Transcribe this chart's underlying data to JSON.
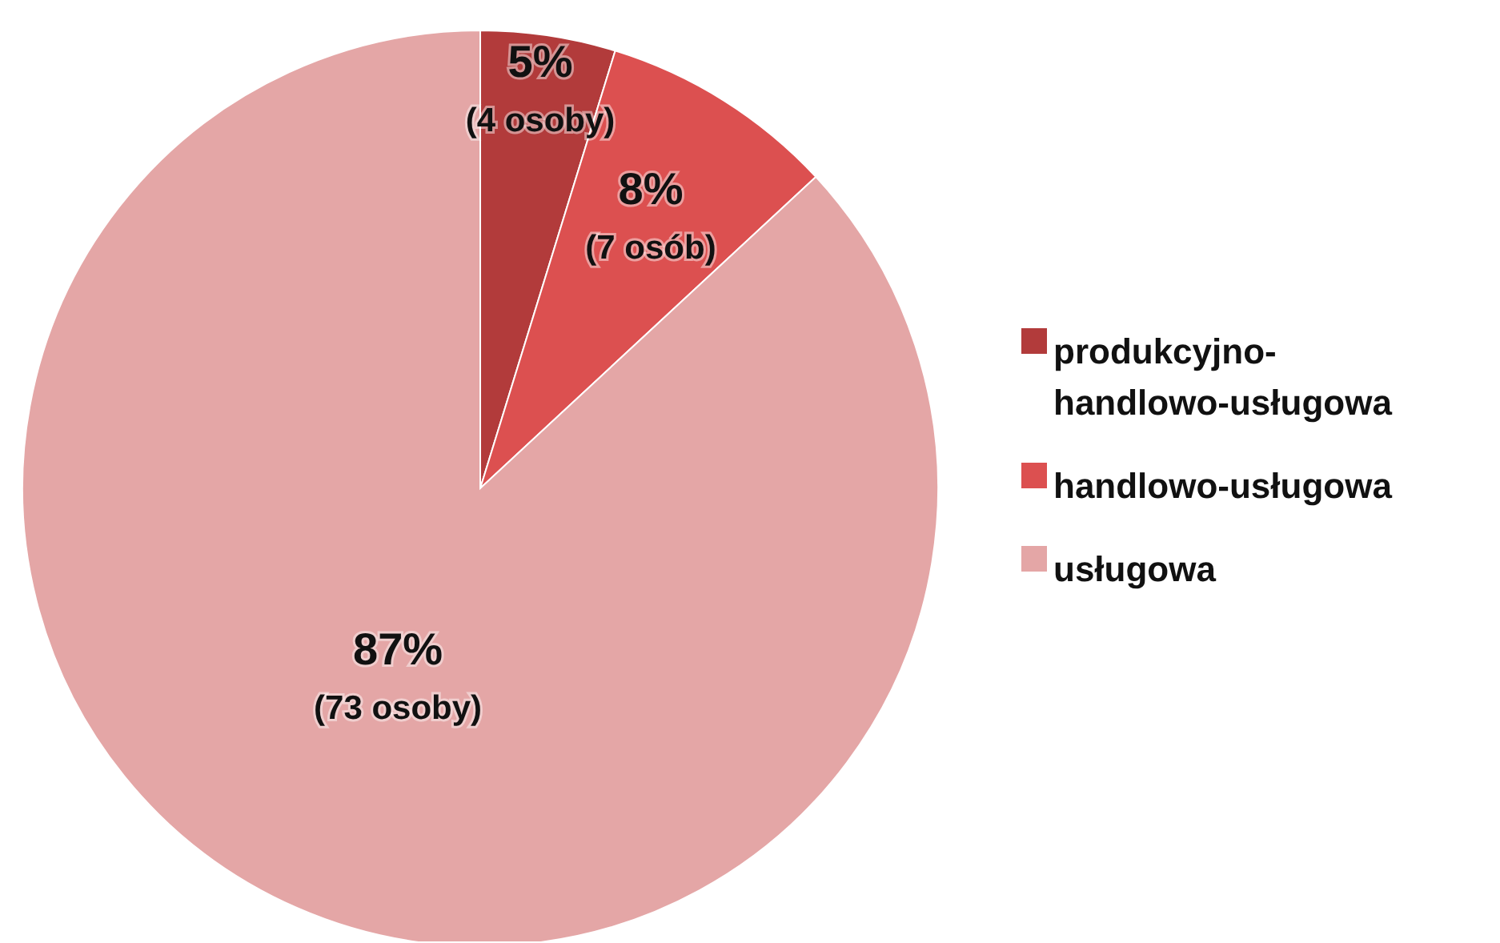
{
  "chart_data": {
    "type": "pie",
    "categories": [
      "produkcyjno-handlowo-usługowa",
      "handlowo-usługowa",
      "usługowa"
    ],
    "values": [
      4,
      7,
      73
    ],
    "colors": [
      "#b23b3b",
      "#dc5050",
      "#e4a6a6"
    ],
    "value_labels": [
      "5%\n(4 osoby)",
      "8%\n(7 osób)",
      "87%\n(73 osoby)"
    ],
    "legend": "right"
  }
}
